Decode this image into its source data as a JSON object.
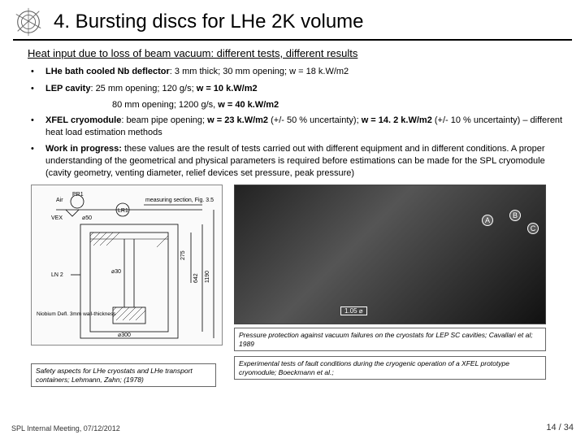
{
  "header": {
    "title": "4. Bursting discs for LHe 2K volume"
  },
  "subtitle": "Heat input due to loss of beam vacuum: different tests, different results",
  "bullets": [
    {
      "html": "<b>LHe bath cooled Nb deflector</b>: 3 mm thick; 30 mm opening; w = 18 k.W/m2"
    },
    {
      "html": "<b>LEP cavity</b>: 25 mm opening; 120 g/s; <b>w = 10 k.W/m2</b>"
    }
  ],
  "subline": "80 mm opening; 1200 g/s, <b>w = 40 k.W/m2</b>",
  "bullets2": [
    {
      "html": "<b>XFEL cryomodule</b>: beam pipe opening; <b>w = 23 k.W/m2</b> (+/- 50 % uncertainty); <b>w = 14. 2 k.W/m2</b> (+/- 10 % uncertainty) – different heat load estimation methods"
    },
    {
      "html": "<b>Work in progress:</b> these values are the result of tests carried out with different equipment and in different conditions. A proper understanding of the  geometrical and physical parameters is required before estimations can be made for the SPL cryomodule (cavity geometry, venting diameter, relief devices set pressure, peak pressure)"
    }
  ],
  "diagram_labels": {
    "air": "Air",
    "pr1": "PR1",
    "vex": "VEX",
    "lr1": "LR1",
    "meas": "measuring section, Fig. 3.5",
    "d50": "⌀50",
    "ln2": "LN 2",
    "d30": "⌀30",
    "nb": "Niobium Defl. 3mm wall-thickness",
    "d300": "⌀300",
    "h275": "275",
    "h642": "642",
    "h1190": "1190"
  },
  "photo": {
    "labels": {
      "a": "A",
      "b": "B",
      "c": "C"
    },
    "dim": "1.05 ⌀"
  },
  "captions": {
    "left": "Safety aspects for LHe cryostats and LHe transport containers; Lehmann, Zahn; (1978)",
    "right_top": "Pressure protection against vacuum failures on the cryostats for LEP SC cavities; Cavallari et al; 1989",
    "right_bottom": "Experimental tests of fault conditions during the cryogenic operation of a XFEL prototype cryomodule; Boeckmann et al.;"
  },
  "footer": {
    "left": "SPL Internal Meeting, 07/12/2012",
    "right": "14 / 34"
  }
}
